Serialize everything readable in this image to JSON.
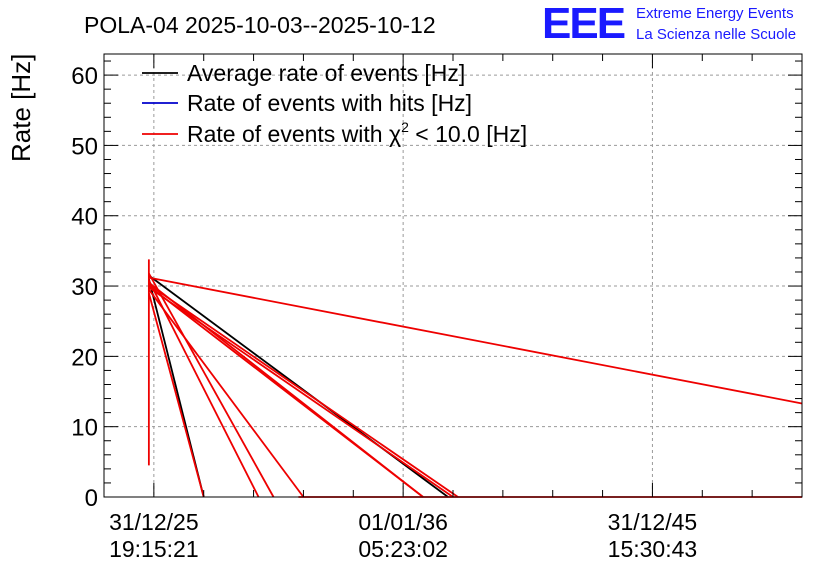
{
  "logo": {
    "mark": "EEE",
    "line1": "Extreme Energy Events",
    "line2": "La Scienza nelle Scuole",
    "color": "#1a1aff"
  },
  "chart_data": {
    "type": "line",
    "title": "POLA-04 2025-10-03--2025-10-12",
    "ylabel": "Rate [Hz]",
    "xlabel": "",
    "ylim": [
      0,
      63
    ],
    "yticks": [
      0,
      10,
      20,
      30,
      40,
      50,
      60
    ],
    "xlim": [
      -0.2,
      2.6
    ],
    "xticks": [
      {
        "pos": 0,
        "date": "31/12/25",
        "time": "19:15:21"
      },
      {
        "pos": 1,
        "date": "01/01/36",
        "time": "05:23:02"
      },
      {
        "pos": 2,
        "date": "31/12/45",
        "time": "15:30:43"
      }
    ],
    "grid": true,
    "legend": {
      "placement": "top-left",
      "entries": [
        {
          "label": "Average rate of events [Hz]",
          "color": "#000000"
        },
        {
          "label": "Rate of events with hits [Hz]",
          "color": "#0000cc"
        },
        {
          "label_prefix": "Rate of events with ",
          "label_symbol": "χ",
          "label_exp": "2",
          "label_suffix": " < 10.0 [Hz]",
          "color": "#ee0000"
        }
      ]
    },
    "series": [
      {
        "name": "Average rate of events [Hz]",
        "color": "#000000",
        "segments": [
          [
            [
              -0.02,
              31.5
            ],
            [
              1.18,
              0
            ]
          ],
          [
            [
              -0.02,
              31.0
            ],
            [
              0.2,
              0
            ]
          ]
        ]
      },
      {
        "name": "Rate of events with hits [Hz]",
        "color": "#0000cc",
        "segments": []
      },
      {
        "name": "Rate of events with chi2 < 10.0 [Hz]",
        "color": "#ee0000",
        "segments": [
          [
            [
              -0.02,
              4.5
            ],
            [
              -0.02,
              33.8
            ]
          ],
          [
            [
              -0.02,
              31.2
            ],
            [
              2.6,
              13.3
            ]
          ],
          [
            [
              -0.02,
              30.5
            ],
            [
              1.08,
              0
            ]
          ],
          [
            [
              -0.02,
              30.0
            ],
            [
              1.08,
              0
            ]
          ],
          [
            [
              -0.02,
              29.5
            ],
            [
              0.6,
              0
            ]
          ],
          [
            [
              -0.02,
              30.2
            ],
            [
              1.22,
              0
            ]
          ],
          [
            [
              -0.02,
              30.8
            ],
            [
              0.42,
              0
            ]
          ],
          [
            [
              -0.02,
              29.0
            ],
            [
              0.2,
              0
            ]
          ],
          [
            [
              -0.02,
              31.8
            ],
            [
              0.48,
              0
            ]
          ],
          [
            [
              -0.02,
              29.8
            ],
            [
              1.2,
              0
            ]
          ],
          [
            [
              0.58,
              0
            ],
            [
              2.6,
              0
            ]
          ]
        ]
      }
    ]
  }
}
